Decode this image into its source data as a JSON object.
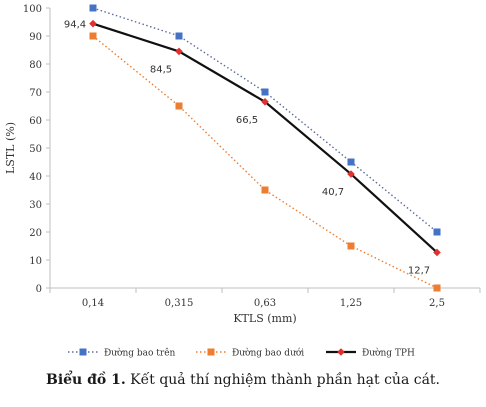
{
  "chart_data": {
    "type": "line",
    "categories": [
      "0,14",
      "0,315",
      "0,63",
      "1,25",
      "2,5"
    ],
    "ylim": [
      0,
      100
    ],
    "yticks": [
      0,
      10,
      20,
      30,
      40,
      50,
      60,
      70,
      80,
      90,
      100
    ],
    "xlabel": "KTLS (mm)",
    "ylabel": "LSTL (%)",
    "grid": false,
    "legend_position": "bottom",
    "series": [
      {
        "name": "Đường bao trên",
        "values": [
          100,
          90,
          70,
          45,
          20
        ],
        "color": "#4472c4",
        "line_color": "#5b6f9a",
        "style": "dotted",
        "marker": "square"
      },
      {
        "name": "Đường bao dưới",
        "values": [
          90,
          65,
          35,
          15,
          0
        ],
        "color": "#ed7d31",
        "line_color": "#ed7d31",
        "style": "dotted",
        "marker": "square"
      },
      {
        "name": "Đường TPH",
        "values": [
          94.4,
          84.5,
          66.5,
          40.7,
          12.7
        ],
        "color": "#e0302f",
        "line_color": "#111111",
        "style": "solid",
        "marker": "diamond"
      }
    ],
    "data_labels": [
      "94,4",
      "84,5",
      "66,5",
      "40,7",
      "12,7"
    ]
  },
  "caption": {
    "bold": "Biểu đồ 1.",
    "text": " Kết quả thí nghiệm thành phần hạt của cát."
  }
}
